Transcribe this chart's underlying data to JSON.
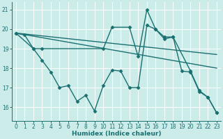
{
  "xlabel": "Humidex (Indice chaleur)",
  "bg_color": "#ccecea",
  "line_color": "#1a7070",
  "grid_color": "#ffffff",
  "xlim": [
    -0.5,
    23.5
  ],
  "ylim": [
    15.3,
    21.4
  ],
  "yticks": [
    16,
    17,
    18,
    19,
    20,
    21
  ],
  "xticks": [
    0,
    1,
    2,
    3,
    4,
    5,
    6,
    7,
    8,
    9,
    10,
    11,
    12,
    13,
    14,
    15,
    16,
    17,
    18,
    19,
    20,
    21,
    22,
    23
  ],
  "series": [
    {
      "x": [
        0,
        1,
        2,
        3,
        4,
        5,
        6,
        7,
        8,
        9,
        10,
        11,
        12,
        13,
        14,
        15,
        16,
        17,
        18,
        19,
        20,
        21,
        22,
        23
      ],
      "y": [
        19.8,
        19.7,
        19.0,
        18.4,
        17.8,
        17.0,
        17.1,
        16.3,
        16.6,
        15.8,
        17.1,
        17.9,
        17.85,
        17.0,
        17.0,
        20.2,
        20.0,
        19.5,
        19.6,
        17.85,
        17.8,
        16.8,
        16.5,
        15.7
      ],
      "marker": true,
      "markersize": 2.5,
      "linewidth": 1.0
    },
    {
      "comment": "line with markers peaking at x=15 (21), x=0,2,3,10,11,13,14,15,16,17,18,20,21,22,23",
      "x": [
        0,
        2,
        3,
        10,
        11,
        13,
        14,
        15,
        16,
        17,
        18,
        20,
        21,
        22,
        23
      ],
      "y": [
        19.8,
        19.0,
        19.0,
        19.0,
        20.1,
        20.1,
        18.6,
        21.0,
        20.0,
        19.6,
        19.6,
        17.85,
        16.85,
        16.5,
        15.7
      ],
      "marker": true,
      "markersize": 2.5,
      "linewidth": 1.0
    },
    {
      "x": [
        0,
        23
      ],
      "y": [
        19.8,
        18.7
      ],
      "marker": false,
      "markersize": 0,
      "linewidth": 1.0
    },
    {
      "x": [
        0,
        23
      ],
      "y": [
        19.8,
        18.0
      ],
      "marker": false,
      "markersize": 0,
      "linewidth": 1.0
    }
  ]
}
